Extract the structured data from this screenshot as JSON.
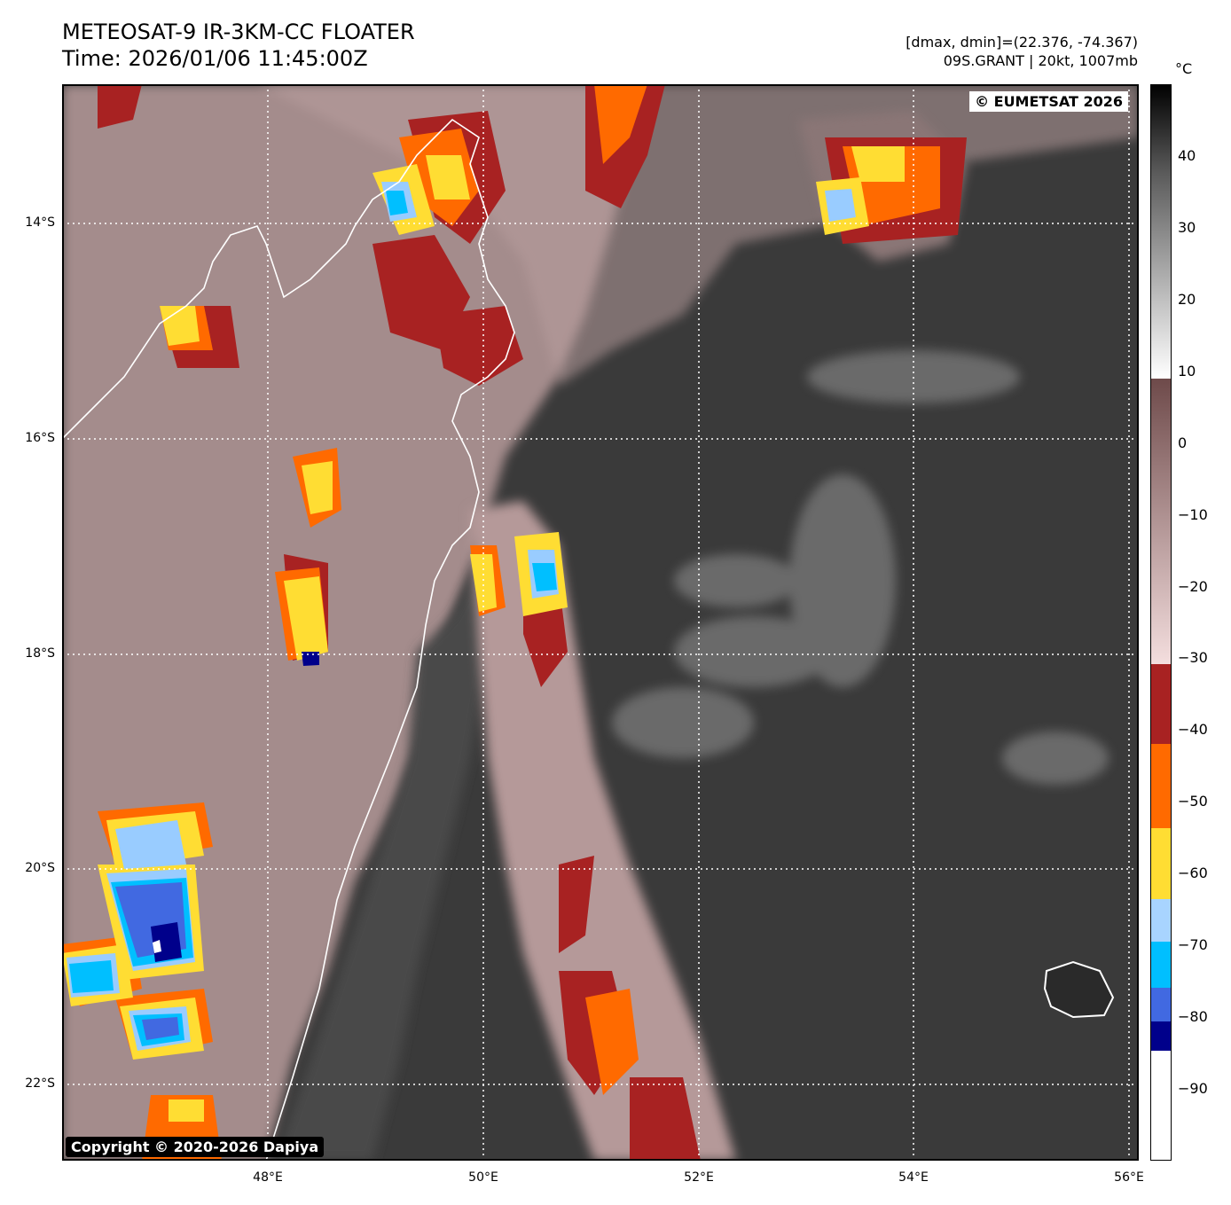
{
  "header": {
    "title_line1": "METEOSAT-9 IR-3KM-CC FLOATER",
    "title_line2": "Time: 2026/01/06 11:45:00Z",
    "info_line1": "[dmax, dmin]=(22.376, -74.367)",
    "info_line2": "09S.GRANT | 20kt, 1007mb"
  },
  "map": {
    "eumetsat_label": "© EUMETSAT 2026",
    "copyright_label": "Copyright © 2020-2026 Dapiya",
    "lat_labels": [
      "14°S",
      "16°S",
      "18°S",
      "20°S",
      "22°S"
    ],
    "lon_labels": [
      "48°E",
      "50°E",
      "52°E",
      "54°E",
      "56°E"
    ],
    "lon_range": [
      46.05,
      56.05
    ],
    "lat_range": [
      -22.7,
      -12.7
    ],
    "colors": {
      "frame": "#000000",
      "gridline": "#ffffff",
      "coastline": "#ffffff",
      "ocean_dark": "#3c3c3c",
      "land_warm": "#c9a7a7"
    }
  },
  "colorbar": {
    "unit": "°C",
    "range": [
      -100,
      50
    ],
    "tick_labels": [
      "40",
      "30",
      "20",
      "10",
      "0",
      "−10",
      "−20",
      "−30",
      "−40",
      "−50",
      "−60",
      "−70",
      "−80",
      "−90"
    ],
    "tick_values": [
      40,
      30,
      20,
      10,
      0,
      -10,
      -20,
      -30,
      -40,
      -50,
      -60,
      -70,
      -80,
      -90
    ]
  }
}
